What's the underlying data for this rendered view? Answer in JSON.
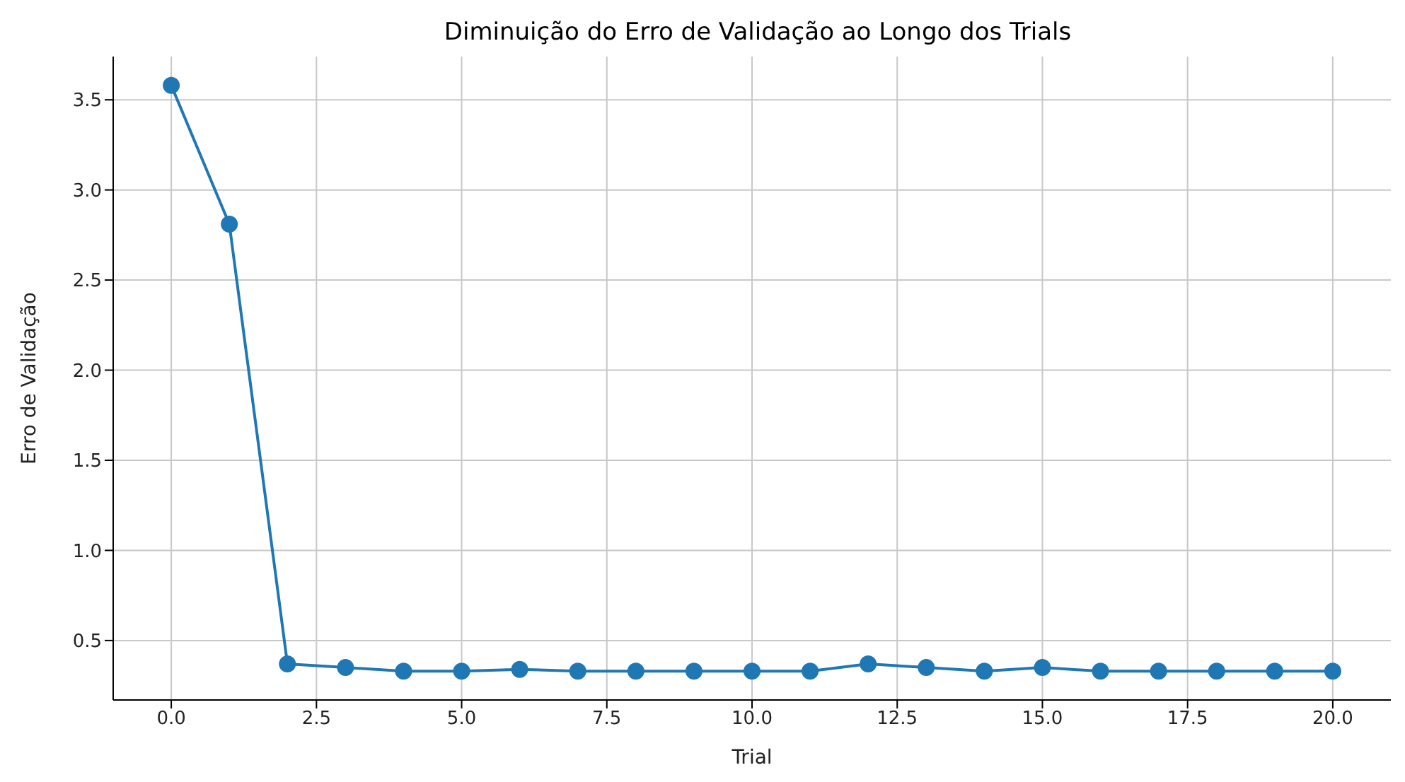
{
  "chart_data": {
    "type": "line",
    "title": "Diminuição do Erro de Validação ao Longo dos Trials",
    "xlabel": "Trial",
    "ylabel": "Erro de Validação",
    "x": [
      0,
      1,
      2,
      3,
      4,
      5,
      6,
      7,
      8,
      9,
      10,
      11,
      12,
      13,
      14,
      15,
      16,
      17,
      18,
      19,
      20
    ],
    "series": [
      {
        "color": "#1f77b4",
        "values": [
          3.58,
          2.81,
          0.37,
          0.35,
          0.33,
          0.33,
          0.34,
          0.33,
          0.33,
          0.33,
          0.33,
          0.33,
          0.37,
          0.35,
          0.33,
          0.35,
          0.33,
          0.33,
          0.33,
          0.33,
          0.33
        ]
      }
    ],
    "xlim": [
      -1,
      21
    ],
    "xticks": [
      {
        "value": 0,
        "label": "0.0"
      },
      {
        "value": 2.5,
        "label": "2.5"
      },
      {
        "value": 5,
        "label": "5.0"
      },
      {
        "value": 7.5,
        "label": "7.5"
      },
      {
        "value": 10,
        "label": "10.0"
      },
      {
        "value": 12.5,
        "label": "12.5"
      },
      {
        "value": 15,
        "label": "15.0"
      },
      {
        "value": 17.5,
        "label": "17.5"
      },
      {
        "value": 20,
        "label": "20.0"
      }
    ],
    "ylim": [
      0.17,
      3.74
    ],
    "yticks": [
      {
        "value": 0.5,
        "label": "0.5"
      },
      {
        "value": 1,
        "label": "1.0"
      },
      {
        "value": 1.5,
        "label": "1.5"
      },
      {
        "value": 2,
        "label": "2.0"
      },
      {
        "value": 2.5,
        "label": "2.5"
      },
      {
        "value": 3,
        "label": "3.0"
      },
      {
        "value": 3.5,
        "label": "3.5"
      }
    ],
    "grid": true,
    "marker": "circle",
    "line_style": "solid",
    "legend": false
  }
}
